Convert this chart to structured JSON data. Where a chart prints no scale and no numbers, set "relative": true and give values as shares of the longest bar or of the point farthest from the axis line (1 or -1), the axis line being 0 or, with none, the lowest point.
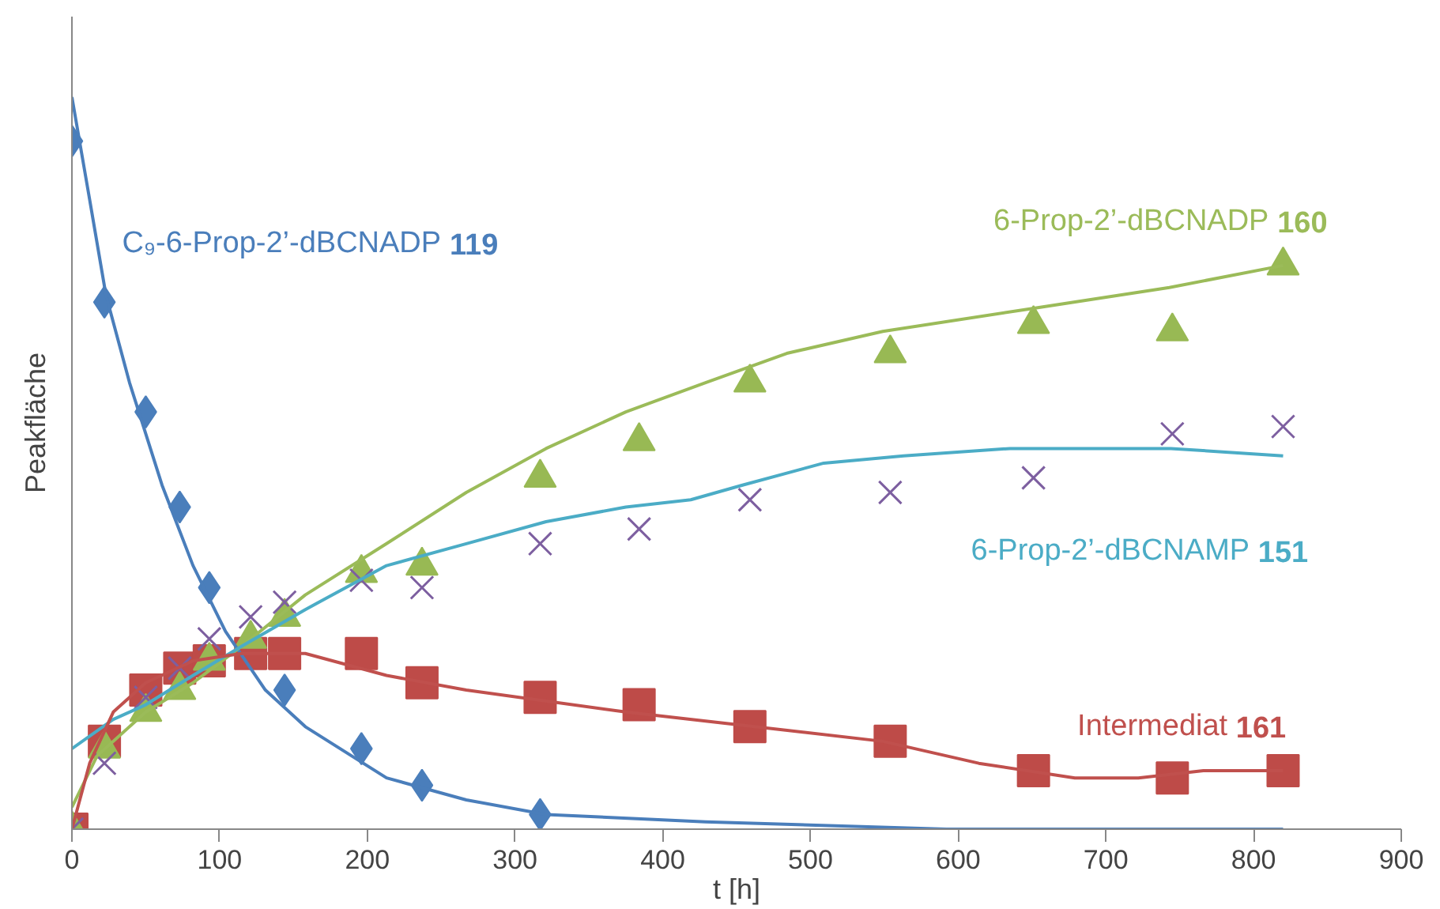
{
  "chart_data": {
    "type": "scatter",
    "relative": true,
    "xlabel": "t [h]",
    "ylabel": "Peakfläche",
    "xlim": [
      0,
      900
    ],
    "xticks": [
      0,
      100,
      200,
      300,
      400,
      500,
      600,
      700,
      800,
      900
    ],
    "tick_labels": "x",
    "grid": false,
    "series": [
      {
        "marker": "diamond",
        "color": "#4a7ebb",
        "x": [
          0,
          22,
          50,
          73,
          93,
          121,
          144,
          196,
          237,
          317
        ],
        "values": [
          0.94,
          0.72,
          0.57,
          0.44,
          0.33,
          null,
          0.19,
          0.11,
          0.06,
          0.02
        ]
      },
      {
        "marker": "square",
        "color": "#be4b48",
        "x": [
          0,
          22,
          50,
          73,
          93,
          121,
          144,
          196,
          237,
          317,
          384,
          459,
          554,
          651,
          745,
          820
        ],
        "values": [
          0,
          0.12,
          0.19,
          0.22,
          0.23,
          0.24,
          0.24,
          0.24,
          0.2,
          0.18,
          0.17,
          0.14,
          0.12,
          0.08,
          0.07,
          0.08
        ]
      },
      {
        "marker": "triangle",
        "color": "#98b954",
        "x": [
          0,
          22,
          50,
          73,
          93,
          121,
          144,
          196,
          237,
          317,
          384,
          459,
          554,
          651,
          745,
          820
        ],
        "values": [
          0,
          0.11,
          0.16,
          0.19,
          0.23,
          0.26,
          0.29,
          0.35,
          0.36,
          0.48,
          0.53,
          0.61,
          0.65,
          0.69,
          0.68,
          0.77
        ]
      },
      {
        "marker": "cross",
        "color": "#7d5fa0",
        "x": [
          0,
          22,
          50,
          73,
          93,
          121,
          144,
          196,
          237,
          317,
          384,
          459,
          554,
          651,
          745,
          820
        ],
        "values": [
          0,
          0.09,
          0.18,
          0.22,
          0.26,
          0.29,
          0.31,
          0.34,
          0.33,
          0.39,
          0.41,
          0.45,
          0.46,
          0.48,
          0.54,
          0.55
        ]
      },
      {
        "type": "line",
        "name": "C₉-6-Prop-2’-dBCNADP 119",
        "color": "#4a7ebb",
        "x": [
          0,
          12,
          23,
          39,
          61,
          82,
          104,
          131,
          158,
          213,
          267,
          321,
          429,
          592,
          820
        ],
        "values": [
          1.0,
          0.86,
          0.73,
          0.61,
          0.47,
          0.36,
          0.27,
          0.19,
          0.14,
          0.07,
          0.04,
          0.02,
          0.01,
          0.0,
          0.0
        ]
      },
      {
        "type": "line",
        "name": "6-Prop-2’-dBCNADP 160",
        "color": "#9bbb59",
        "x": [
          0,
          17,
          50,
          82,
          115,
          158,
          213,
          267,
          321,
          375,
          429,
          484,
          549,
          646,
          743,
          820
        ],
        "values": [
          0.03,
          0.1,
          0.16,
          0.2,
          0.25,
          0.32,
          0.39,
          0.46,
          0.52,
          0.57,
          0.61,
          0.65,
          0.68,
          0.71,
          0.74,
          0.77
        ]
      },
      {
        "type": "line",
        "name": "6-Prop-2’-dBCNAMP 151",
        "color": "#4bacc6",
        "x": [
          0,
          28,
          50,
          82,
          115,
          158,
          213,
          267,
          321,
          375,
          419,
          454,
          509,
          563,
          635,
          708,
          744,
          820
        ],
        "values": [
          0.11,
          0.15,
          0.17,
          0.21,
          0.25,
          0.3,
          0.36,
          0.39,
          0.42,
          0.44,
          0.45,
          0.47,
          0.5,
          0.51,
          0.52,
          0.52,
          0.52,
          0.51
        ]
      },
      {
        "type": "line",
        "name": "Intermediat 161",
        "color": "#c0504d",
        "x": [
          0,
          12,
          28,
          50,
          82,
          115,
          158,
          213,
          267,
          375,
          462,
          549,
          614,
          679,
          722,
          766,
          820
        ],
        "values": [
          0,
          0.09,
          0.16,
          0.2,
          0.23,
          0.24,
          0.24,
          0.21,
          0.19,
          0.16,
          0.14,
          0.12,
          0.09,
          0.07,
          0.07,
          0.08,
          0.08
        ]
      }
    ]
  }
}
